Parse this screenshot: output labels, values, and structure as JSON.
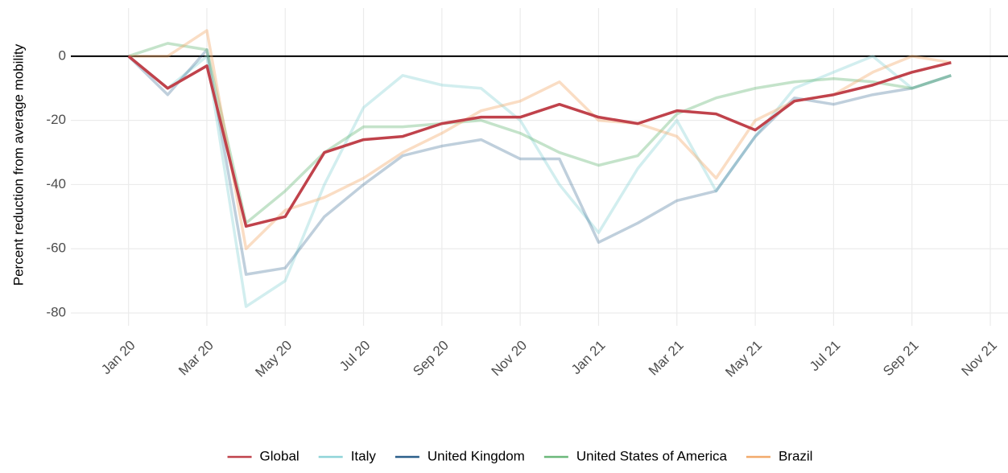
{
  "chart_data": {
    "type": "line",
    "ylabel": "Percent reduction from average mobility",
    "x": [
      "2020-01",
      "2020-02",
      "2020-03",
      "2020-04",
      "2020-05",
      "2020-06",
      "2020-07",
      "2020-08",
      "2020-09",
      "2020-10",
      "2020-11",
      "2020-12",
      "2021-01",
      "2021-02",
      "2021-03",
      "2021-04",
      "2021-05",
      "2021-06",
      "2021-07",
      "2021-08",
      "2021-09",
      "2021-10"
    ],
    "series": [
      {
        "name": "Italy",
        "color": "#8fd4d8",
        "alpha": 0.4,
        "values": [
          0,
          -10,
          0,
          -78,
          -70,
          -40,
          -16,
          -6,
          -9,
          -10,
          -20,
          -40,
          -55,
          -35,
          -20,
          -42,
          -25,
          -10,
          -5,
          0,
          -10,
          -6
        ]
      },
      {
        "name": "United Kingdom",
        "color": "#2b5f8a",
        "alpha": 0.3,
        "values": [
          0,
          -12,
          2,
          -68,
          -66,
          -50,
          -40,
          -31,
          -28,
          -26,
          -32,
          -32,
          -58,
          -52,
          -45,
          -42,
          -25,
          -13,
          -15,
          -12,
          -10,
          -6
        ]
      },
      {
        "name": "United States of America",
        "color": "#6bb87a",
        "alpha": 0.4,
        "values": [
          0,
          4,
          2,
          -52,
          -42,
          -30,
          -22,
          -22,
          -21,
          -20,
          -24,
          -30,
          -34,
          -31,
          -18,
          -13,
          -10,
          -8,
          -7,
          -8,
          -10,
          -6
        ]
      },
      {
        "name": "Brazil",
        "color": "#f2aa6b",
        "alpha": 0.4,
        "values": [
          0,
          0,
          8,
          -60,
          -48,
          -44,
          -38,
          -30,
          -24,
          -17,
          -14,
          -8,
          -20,
          -21,
          -25,
          -38,
          -20,
          -14,
          -12,
          -5,
          0,
          -2
        ]
      },
      {
        "name": "Global",
        "color": "#c0424b",
        "alpha": 1,
        "values": [
          0,
          -10,
          -3,
          -53,
          -50,
          -30,
          -26,
          -25,
          -21,
          -19,
          -19,
          -15,
          -19,
          -21,
          -17,
          -18,
          -23,
          -14,
          -12,
          -9,
          -5,
          -2
        ]
      }
    ],
    "legend_order": [
      4,
      0,
      1,
      2,
      3
    ],
    "hline": 0,
    "xlim": [
      "2019-12",
      "2021-11"
    ],
    "xticks": [
      {
        "value": "2020-01",
        "label": "Jan 20"
      },
      {
        "value": "2020-03",
        "label": "Mar 20"
      },
      {
        "value": "2020-05",
        "label": "May 20"
      },
      {
        "value": "2020-07",
        "label": "Jul 20"
      },
      {
        "value": "2020-09",
        "label": "Sep 20"
      },
      {
        "value": "2020-11",
        "label": "Nov 20"
      },
      {
        "value": "2021-01",
        "label": "Jan 21"
      },
      {
        "value": "2021-03",
        "label": "Mar 21"
      },
      {
        "value": "2021-05",
        "label": "May 21"
      },
      {
        "value": "2021-07",
        "label": "Jul 21"
      },
      {
        "value": "2021-09",
        "label": "Sep 21"
      },
      {
        "value": "2021-11",
        "label": "Nov 21"
      }
    ],
    "ylim": [
      -84,
      15
    ],
    "yticks": [
      -80,
      -60,
      -40,
      -20,
      0
    ],
    "grid": true,
    "legend": "bottom"
  }
}
